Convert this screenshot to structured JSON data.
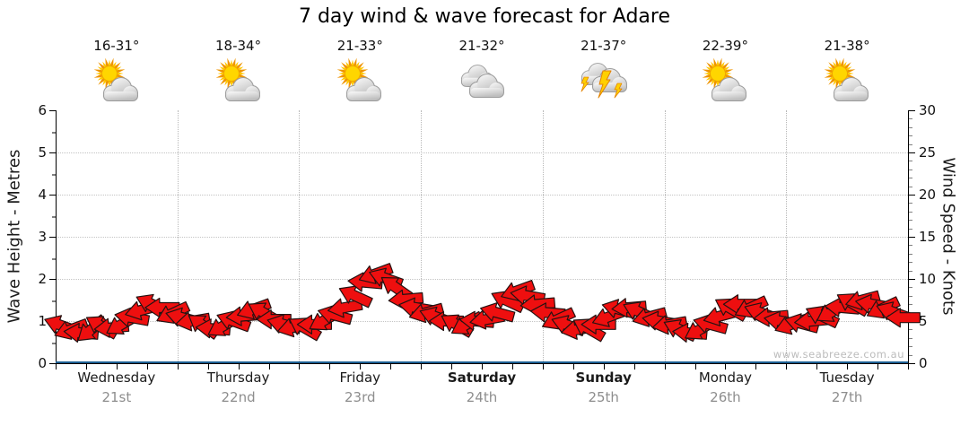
{
  "title": "7 day wind & wave forecast for Adare",
  "watermark": "www.seabreeze.com.au",
  "days": [
    {
      "name": "Wednesday",
      "date": "21st",
      "temp": "16-31°",
      "icon": "sun-cloud",
      "bold": false
    },
    {
      "name": "Thursday",
      "date": "22nd",
      "temp": "18-34°",
      "icon": "sun-cloud",
      "bold": false
    },
    {
      "name": "Friday",
      "date": "23rd",
      "temp": "21-33°",
      "icon": "sun-cloud",
      "bold": false
    },
    {
      "name": "Saturday",
      "date": "24th",
      "temp": "21-32°",
      "icon": "cloudy",
      "bold": true
    },
    {
      "name": "Sunday",
      "date": "25th",
      "temp": "21-37°",
      "icon": "storm",
      "bold": true
    },
    {
      "name": "Monday",
      "date": "26th",
      "temp": "22-39°",
      "icon": "sun-cloud",
      "bold": false
    },
    {
      "name": "Tuesday",
      "date": "27th",
      "temp": "21-38°",
      "icon": "sun-cloud",
      "bold": false
    }
  ],
  "left_axis": {
    "label": "Wave Height - Metres",
    "ticks": [
      0,
      1,
      2,
      3,
      4,
      5,
      6
    ],
    "min": 0,
    "max": 6
  },
  "right_axis": {
    "label": "Wind Speed - Knots",
    "ticks": [
      0,
      5,
      10,
      15,
      20,
      25,
      30
    ],
    "min": 0,
    "max": 30
  },
  "colors": {
    "arrow": "#ee0f0f",
    "arrow_outline": "#241312",
    "wave_line": "#1c5f93",
    "grid": "#c0c0c0",
    "axis": "#000000",
    "day_text": "#1a1a1a",
    "date_text": "#8e8e8e",
    "watermark": "#bcbcbc",
    "sun": "#ffd600",
    "sun_ray_outer": "#ef9400",
    "sun_ray_inner": "#ffc800",
    "cloud_light": "#fafafa",
    "cloud_dark": "#bfbfbf",
    "cloud_edge": "#9b9b9b",
    "lightning": "#ffd000",
    "lightning_edge": "#e28200"
  },
  "chart_data": {
    "type": "scatter",
    "subtype": "wind-arrow-forecast",
    "title": "7 day wind & wave forecast for Adare",
    "x_categories": [
      "Wednesday 21st",
      "Thursday 22nd",
      "Friday 23rd",
      "Saturday 24th",
      "Sunday 25th",
      "Monday 26th",
      "Tuesday 27th"
    ],
    "ylabel_left": "Wave Height - Metres",
    "ylabel_right": "Wind Speed - Knots",
    "ylim_left": [
      0,
      6
    ],
    "ylim_right": [
      0,
      30
    ],
    "grid": true,
    "legend": false,
    "daily_temps_c": [
      [
        16,
        31
      ],
      [
        18,
        34
      ],
      [
        21,
        33
      ],
      [
        21,
        32
      ],
      [
        21,
        37
      ],
      [
        22,
        39
      ],
      [
        21,
        38
      ]
    ],
    "daily_conditions": [
      "partly-cloudy",
      "partly-cloudy",
      "partly-cloudy",
      "cloudy",
      "thunderstorm",
      "partly-cloudy",
      "partly-cloudy"
    ],
    "sample_interval_hours": 2,
    "wind_series": {
      "name": "Wind Speed",
      "units": "knots",
      "point_format": [
        "knots",
        "arrow_rotation_deg"
      ],
      "points": [
        [
          4.5,
          200
        ],
        [
          4.0,
          160
        ],
        [
          3.6,
          185
        ],
        [
          4.0,
          140
        ],
        [
          4.4,
          210
        ],
        [
          4.2,
          175
        ],
        [
          4.6,
          150
        ],
        [
          5.4,
          190
        ],
        [
          6.3,
          165
        ],
        [
          7.0,
          205
        ],
        [
          6.6,
          180
        ],
        [
          5.9,
          155
        ],
        [
          5.4,
          195
        ],
        [
          5.0,
          170
        ],
        [
          4.5,
          215
        ],
        [
          4.1,
          185
        ],
        [
          4.4,
          150
        ],
        [
          5.0,
          200
        ],
        [
          5.6,
          175
        ],
        [
          6.4,
          160
        ],
        [
          6.0,
          210
        ],
        [
          5.2,
          180
        ],
        [
          4.6,
          195
        ],
        [
          4.3,
          165
        ],
        [
          4.2,
          210
        ],
        [
          4.6,
          180
        ],
        [
          5.1,
          150
        ],
        [
          5.7,
          195
        ],
        [
          6.6,
          170
        ],
        [
          8.0,
          205
        ],
        [
          9.6,
          185
        ],
        [
          10.6,
          160
        ],
        [
          10.1,
          200
        ],
        [
          9.0,
          215
        ],
        [
          7.6,
          175
        ],
        [
          6.6,
          190
        ],
        [
          6.0,
          165
        ],
        [
          5.5,
          200
        ],
        [
          5.0,
          180
        ],
        [
          4.6,
          210
        ],
        [
          4.6,
          150
        ],
        [
          5.0,
          185
        ],
        [
          5.2,
          170
        ],
        [
          6.0,
          195
        ],
        [
          7.4,
          205
        ],
        [
          8.6,
          160
        ],
        [
          8.0,
          190
        ],
        [
          7.0,
          175
        ],
        [
          6.0,
          185
        ],
        [
          5.2,
          155
        ],
        [
          4.5,
          200
        ],
        [
          4.0,
          170
        ],
        [
          4.1,
          210
        ],
        [
          4.6,
          180
        ],
        [
          5.5,
          160
        ],
        [
          6.4,
          195
        ],
        [
          6.6,
          175
        ],
        [
          6.1,
          205
        ],
        [
          5.5,
          165
        ],
        [
          5.0,
          190
        ],
        [
          4.6,
          170
        ],
        [
          4.0,
          205
        ],
        [
          3.6,
          185
        ],
        [
          4.0,
          150
        ],
        [
          4.6,
          195
        ],
        [
          5.6,
          165
        ],
        [
          6.5,
          210
        ],
        [
          7.0,
          180
        ],
        [
          6.6,
          155
        ],
        [
          6.0,
          200
        ],
        [
          5.5,
          175
        ],
        [
          5.0,
          190
        ],
        [
          4.6,
          160
        ],
        [
          4.7,
          195
        ],
        [
          5.0,
          175
        ],
        [
          5.6,
          205
        ],
        [
          6.1,
          150
        ],
        [
          6.6,
          185
        ],
        [
          7.1,
          210
        ],
        [
          7.5,
          165
        ],
        [
          7.0,
          190
        ],
        [
          6.5,
          155
        ],
        [
          6.1,
          200
        ],
        [
          5.4,
          180
        ]
      ]
    },
    "wave_series": {
      "name": "Wave Height",
      "units": "metres",
      "approx_value": 0.05,
      "note": "flat blue line along zero"
    }
  }
}
